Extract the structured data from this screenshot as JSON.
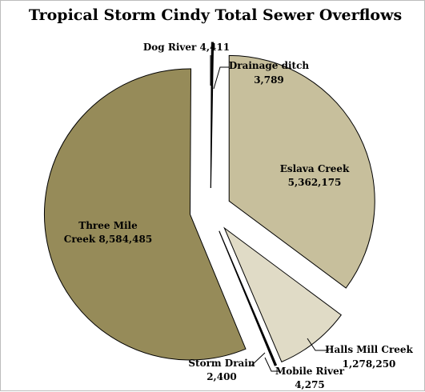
{
  "chart_data": {
    "type": "pie",
    "title": "Tropical Storm Cindy Total Sewer Overflows",
    "slices": [
      {
        "label_line1": "Eslava Creek",
        "label_line2": "5,362,175",
        "value": 5362175,
        "color": "#c7bf9c"
      },
      {
        "label_line1": "Halls Mill Creek",
        "label_line2": "1,278,250",
        "value": 1278250,
        "color": "#e0dbc6"
      },
      {
        "label_line1": "Mobile River",
        "label_line2": "4,275",
        "value": 4275,
        "color": "#ffffff"
      },
      {
        "label_line1": "Storm Drain",
        "label_line2": "2,400",
        "value": 2400,
        "color": "#5d5a3c"
      },
      {
        "label_line1": "Three Mile",
        "label_line2": "Creek 8,584,485",
        "value": 8584485,
        "color": "#968b59"
      },
      {
        "label_line1": "Dog River 4,411",
        "label_line2": "",
        "value": 4411,
        "color": "#ffffff"
      },
      {
        "label_line1": "Drainage ditch",
        "label_line2": "3,789",
        "value": 3789,
        "color": "#6b6646"
      }
    ]
  }
}
